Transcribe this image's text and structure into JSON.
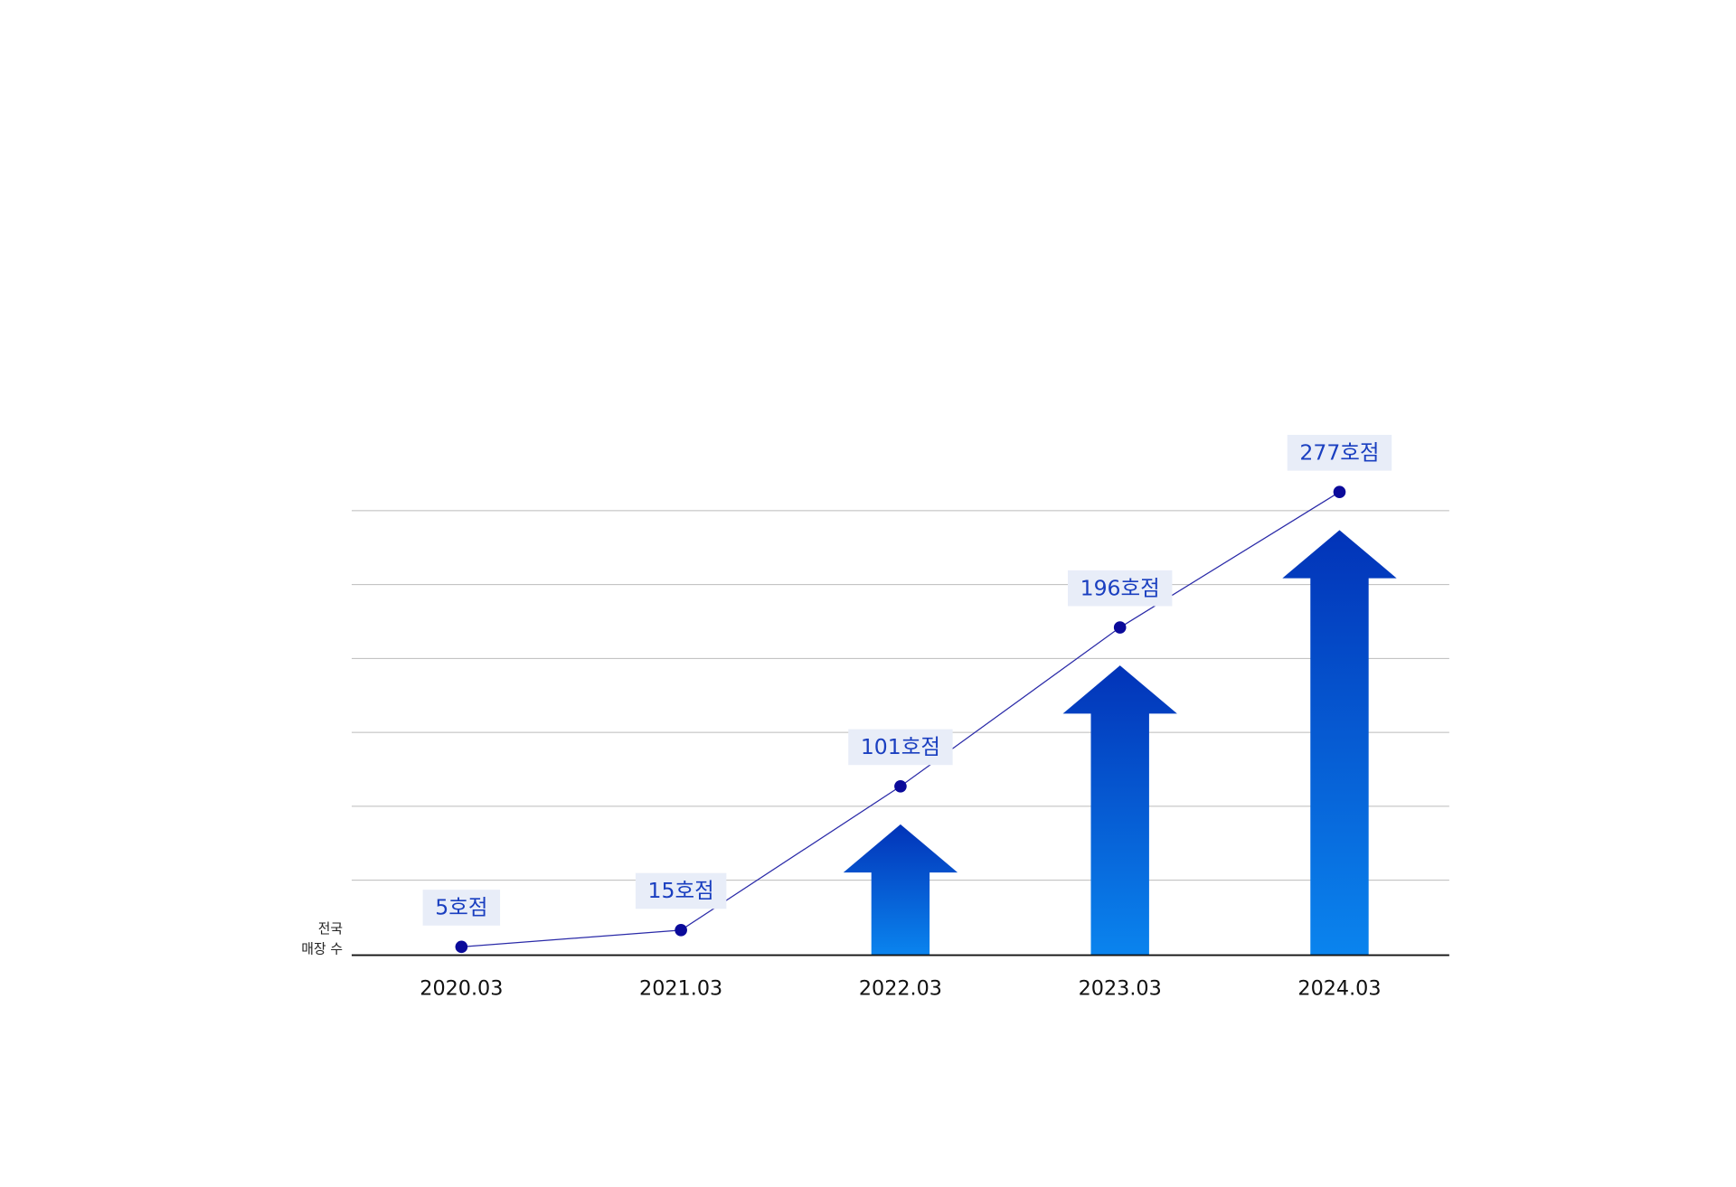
{
  "chart_data": {
    "type": "arrow-bar",
    "ylabel": [
      "전국",
      "매장 수"
    ],
    "categories": [
      "2020.03",
      "2021.03",
      "2022.03",
      "2023.03",
      "2024.03"
    ],
    "values": [
      5,
      15,
      101,
      196,
      277
    ],
    "value_labels": [
      "5호점",
      "15호점",
      "101호점",
      "196호점",
      "277호점"
    ],
    "ylim": [
      0,
      300
    ],
    "grid": true,
    "color": "#0a84ee",
    "line_color": "#2a2aa8"
  }
}
